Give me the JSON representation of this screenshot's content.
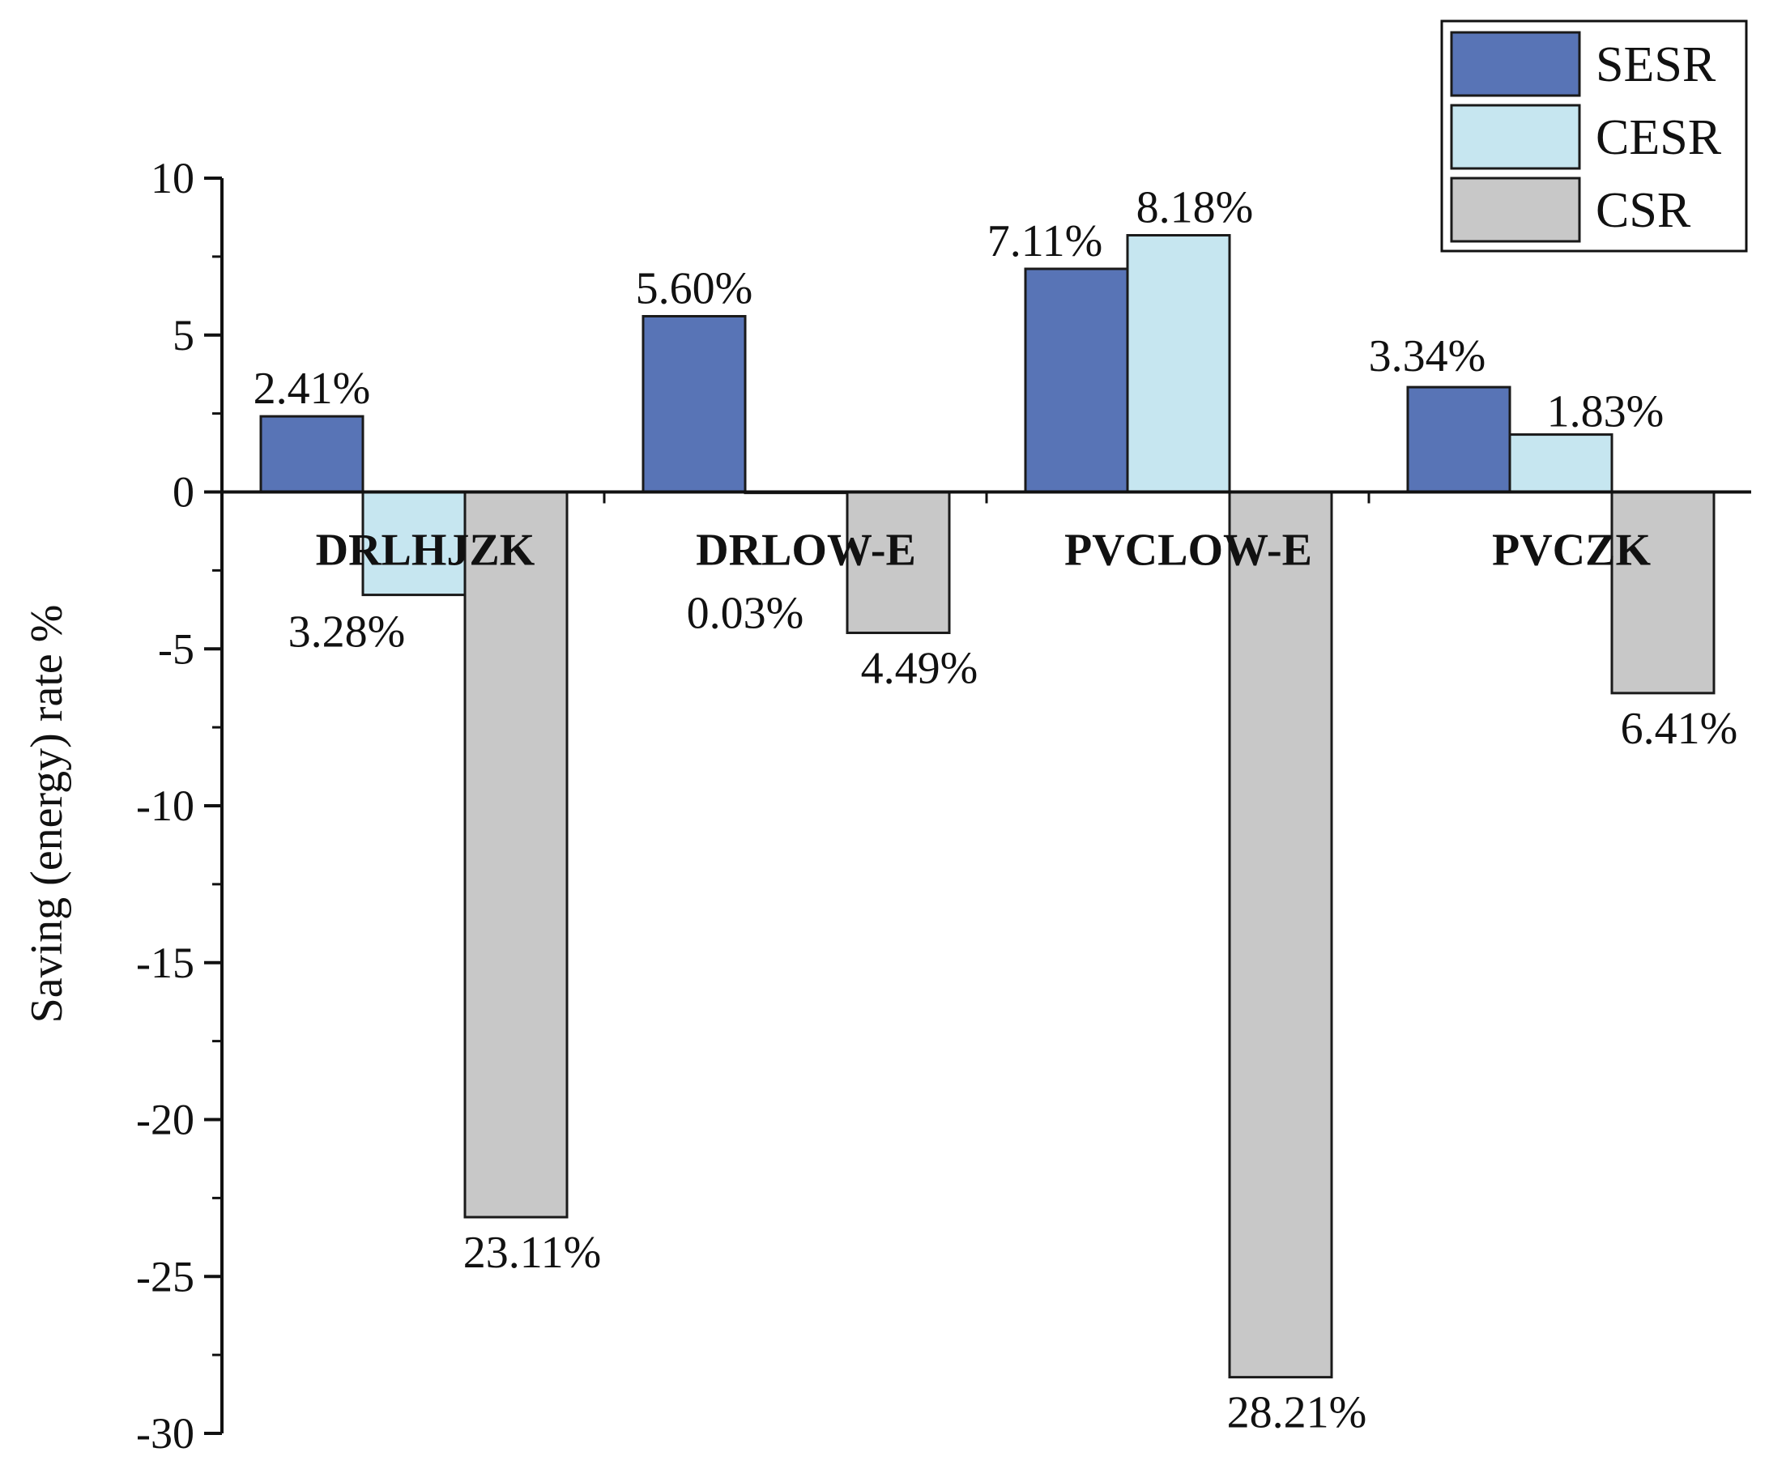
{
  "chart_data": {
    "type": "bar",
    "title": "",
    "xlabel": "",
    "ylabel": "Saving (energy) rate %",
    "ylim": [
      -30,
      10
    ],
    "yticks": [
      10,
      5,
      0,
      -5,
      -10,
      -15,
      -20,
      -25,
      -30
    ],
    "ytick_labels": [
      "10",
      "5",
      "0",
      "-5",
      "-10",
      "-15",
      "-20",
      "-25",
      "-30"
    ],
    "categories": [
      "DRLHJZK",
      "DRLOW-E",
      "PVCLOW-E",
      "PVCZK"
    ],
    "series": [
      {
        "name": "SESR",
        "color": "#5874b6",
        "values": [
          2.41,
          5.6,
          7.11,
          3.34
        ],
        "labels": [
          "2.41%",
          "5.60%",
          "7.11%",
          "3.34%"
        ]
      },
      {
        "name": "CESR",
        "color": "#c6e6f0",
        "values": [
          -3.28,
          -0.03,
          8.18,
          1.83
        ],
        "labels": [
          "3.28%",
          "0.03%",
          "8.18%",
          "1.83%"
        ]
      },
      {
        "name": "CSR",
        "color": "#c8c8c8",
        "values": [
          -23.11,
          -4.49,
          -28.21,
          -6.41
        ],
        "labels": [
          "23.11%",
          "4.49%",
          "28.21%",
          "6.41%"
        ]
      }
    ],
    "legend": {
      "position": "top-right",
      "entries": [
        "SESR",
        "CESR",
        "CSR"
      ]
    },
    "grid": false
  }
}
